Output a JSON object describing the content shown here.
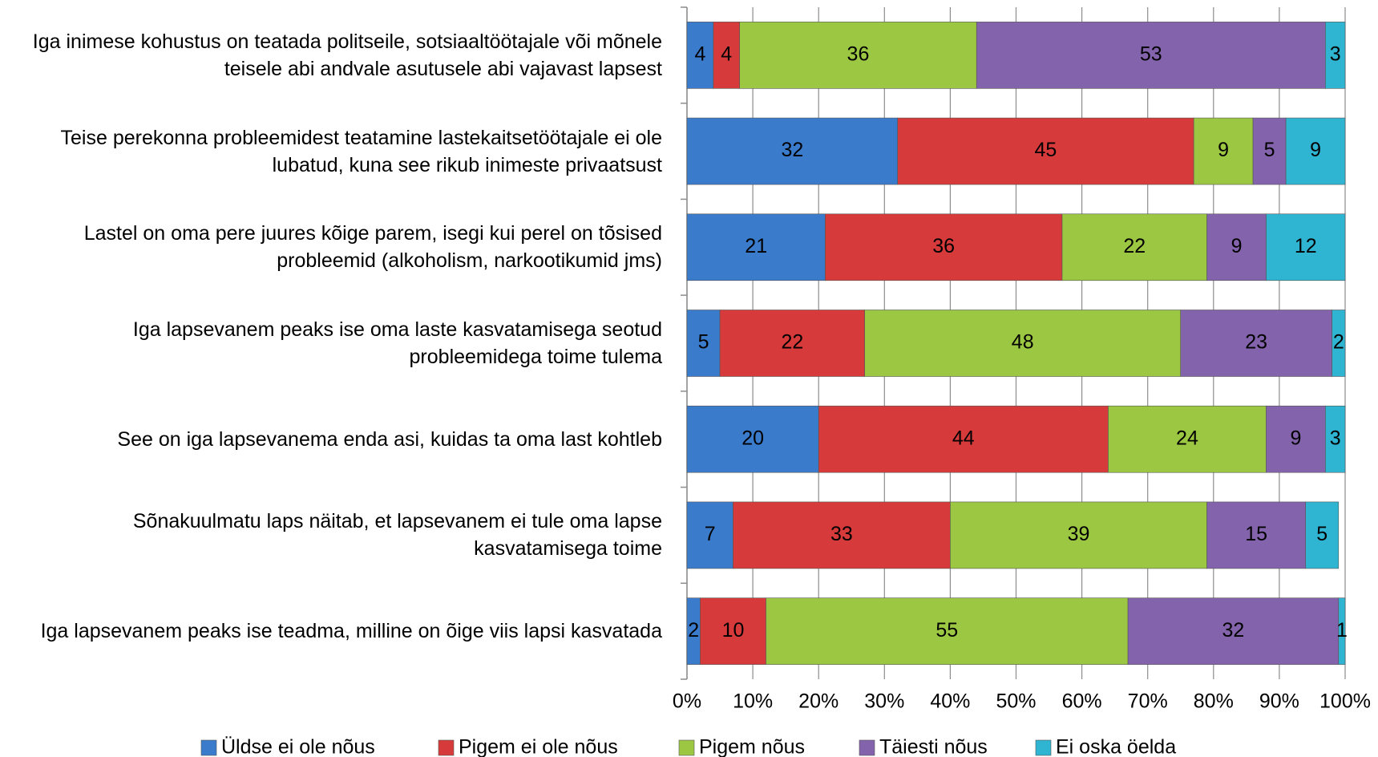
{
  "chart_data": {
    "type": "stacked_bar_horizontal",
    "categories": [
      "Iga inimese kohustus on teatada politseile, sotsiaaltöötajale või mõnele teisele abi andvale asutusele abi vajavast lapsest",
      "Teise perekonna probleemidest teatamine lastekaitsetöötajale ei ole lubatud, kuna see rikub inimeste privaatsust",
      "Lastel on oma pere juures kõige parem, isegi kui perel on tõsised probleemid (alkoholism, narkootikumid jms)",
      "Iga lapsevanem peaks ise oma laste kasvatamisega seotud probleemidega toime tulema",
      "See on iga lapsevanema enda asi, kuidas ta oma last kohtleb",
      "Sõnakuulmatu laps näitab, et lapsevanem ei tule oma lapse kasvatamisega toime",
      "Iga lapsevanem peaks ise teadma, milline on õige viis lapsi kasvatada"
    ],
    "series": [
      {
        "name": "Üldse ei ole nõus",
        "color": "#3a7bcc",
        "values": [
          4,
          32,
          21,
          5,
          20,
          7,
          2
        ]
      },
      {
        "name": "Pigem ei ole nõus",
        "color": "#d63a3a",
        "values": [
          4,
          45,
          36,
          22,
          44,
          33,
          10
        ]
      },
      {
        "name": "Pigem nõus",
        "color": "#9cc742",
        "values": [
          36,
          9,
          22,
          48,
          24,
          39,
          55
        ]
      },
      {
        "name": "Täiesti nõus",
        "color": "#8463ad",
        "values": [
          53,
          5,
          9,
          23,
          9,
          15,
          32
        ]
      },
      {
        "name": "Ei oska öelda",
        "color": "#2fb4d2",
        "values": [
          3,
          9,
          12,
          2,
          3,
          5,
          1
        ]
      }
    ],
    "xlim": [
      0,
      100
    ],
    "xticks": [
      {
        "value": 0,
        "label": "0%"
      },
      {
        "value": 10,
        "label": "10%"
      },
      {
        "value": 20,
        "label": "20%"
      },
      {
        "value": 30,
        "label": "30%"
      },
      {
        "value": 40,
        "label": "40%"
      },
      {
        "value": 50,
        "label": "50%"
      },
      {
        "value": 60,
        "label": "60%"
      },
      {
        "value": 70,
        "label": "70%"
      },
      {
        "value": 80,
        "label": "80%"
      },
      {
        "value": 90,
        "label": "90%"
      },
      {
        "value": 100,
        "label": "100%"
      }
    ],
    "grid": true,
    "legend": "bottom"
  }
}
